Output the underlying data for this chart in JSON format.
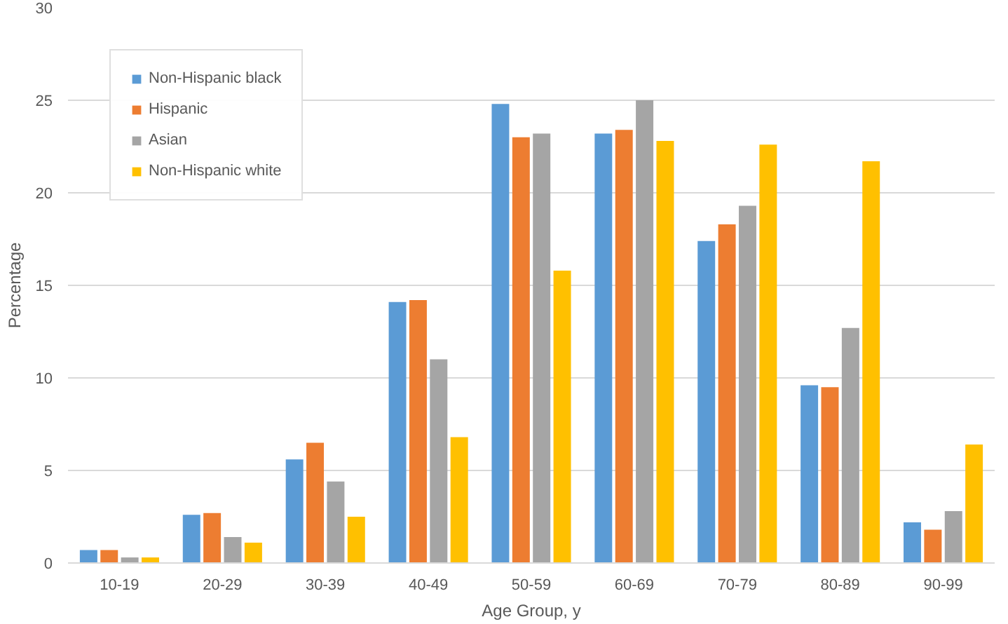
{
  "chart_data": {
    "type": "bar",
    "xlabel": "Age Group, y",
    "ylabel": "Percentage",
    "categories": [
      "10-19",
      "20-29",
      "30-39",
      "40-49",
      "50-59",
      "60-69",
      "70-79",
      "80-89",
      "90-99"
    ],
    "series": [
      {
        "name": "Non-Hispanic black",
        "color": "#5b9bd5",
        "values": [
          0.7,
          2.6,
          5.6,
          14.1,
          24.8,
          23.2,
          17.4,
          9.6,
          2.2
        ]
      },
      {
        "name": "Hispanic",
        "color": "#ed7d31",
        "values": [
          0.7,
          2.7,
          6.5,
          14.2,
          23.0,
          23.4,
          18.3,
          9.5,
          1.8
        ]
      },
      {
        "name": "Asian",
        "color": "#a5a5a5",
        "values": [
          0.3,
          1.4,
          4.4,
          11.0,
          23.2,
          25.0,
          19.3,
          12.7,
          2.8
        ]
      },
      {
        "name": "Non-Hispanic white",
        "color": "#ffc000",
        "values": [
          0.3,
          1.1,
          2.5,
          6.8,
          15.8,
          22.8,
          22.6,
          21.7,
          6.4
        ]
      }
    ],
    "ylim": [
      0,
      30
    ],
    "yticks": [
      0,
      5,
      10,
      15,
      20,
      25,
      30
    ],
    "grid": "y",
    "legend": "top left"
  }
}
